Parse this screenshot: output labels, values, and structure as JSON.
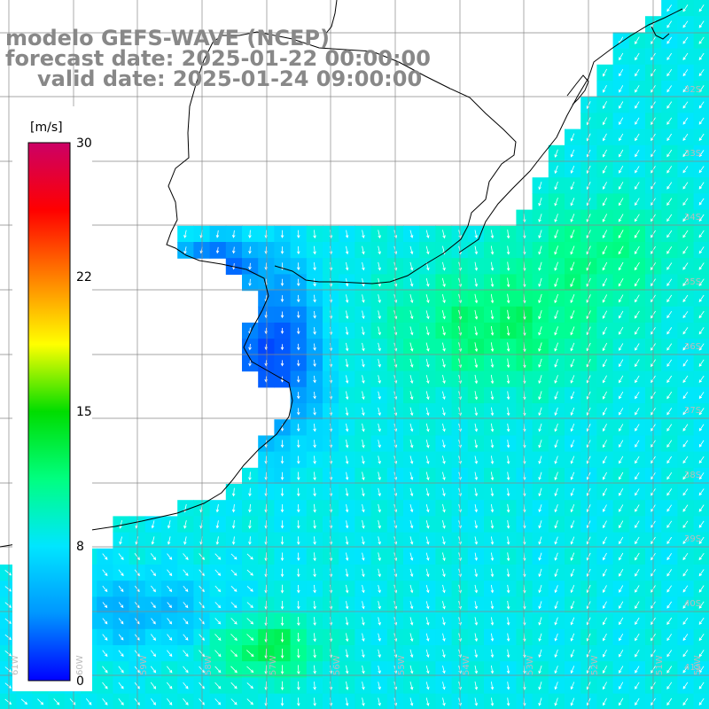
{
  "title": {
    "line1": "modelo GEFS-WAVE (NCEP)",
    "line2": "forecast date: 2025-01-22 00:00:00",
    "line3": "valid date: 2025-01-24 09:00:00"
  },
  "colorbar": {
    "unit": "[m/s]",
    "ticks": [
      "30",
      "22",
      "15",
      "8",
      "0"
    ],
    "min": 0,
    "max": 30,
    "colors": [
      "#0000ff",
      "#0096ff",
      "#00e6ff",
      "#00ff80",
      "#00dd00",
      "#ffff00",
      "#ff8000",
      "#ff0000",
      "#cc0066"
    ]
  },
  "lat_labels": [
    "32S",
    "33S",
    "34S",
    "35S",
    "36S",
    "37S",
    "38S",
    "39S",
    "40S",
    "41S"
  ],
  "lon_labels": [
    "61W",
    "60W",
    "59W",
    "58W",
    "57W",
    "56W",
    "55W",
    "54W",
    "53W",
    "52W",
    "51W",
    "50W"
  ],
  "colors": {
    "land": "#ffffff",
    "grid": "#888888",
    "coast": "#000000",
    "arrow": "#ffffff"
  }
}
